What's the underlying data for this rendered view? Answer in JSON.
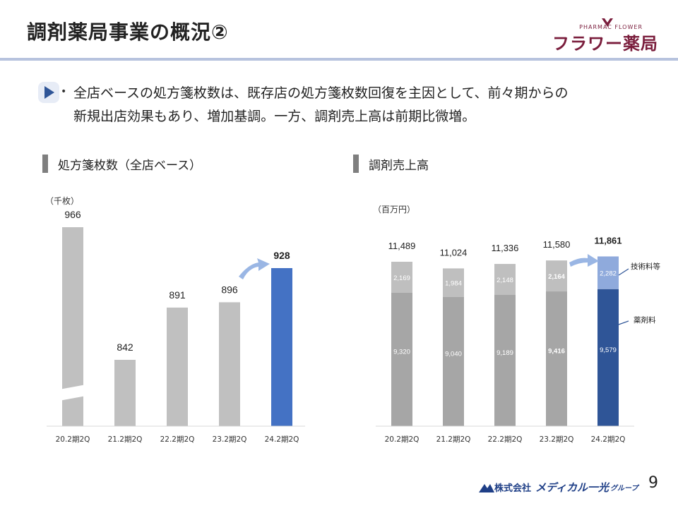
{
  "header": {
    "title": "調剤薬局事業の概況②"
  },
  "logo": {
    "top_text": "PHARMAC FLOWER",
    "main_text": "フラワー薬局"
  },
  "summary": {
    "line1": "全店ベースの処方箋枚数は、既存店の処方箋枚数回復を主因として、前々期からの",
    "line2": "新規出店効果もあり、増加基調。一方、調剤売上高は前期比微増。"
  },
  "sections": {
    "left_title": "処方箋枚数（全店ベース）",
    "right_title": "調剤売上高"
  },
  "units": {
    "left": "（千枚）",
    "right": "（百万円）"
  },
  "colors": {
    "gray_bar": "#c0c0c0",
    "highlight": "#4472c4",
    "stack_top": "#bfbfbf",
    "stack_bottom": "#a6a6a6",
    "top_highlight": "#8faadc",
    "bottom_highlight": "#2f5597",
    "arrow": "#9ab6e4"
  },
  "chart_data": [
    {
      "type": "bar",
      "title": "処方箋枚数（全店ベース）",
      "ylabel": "（千枚）",
      "categories": [
        "20.2期2Q",
        "21.2期2Q",
        "22.2期2Q",
        "23.2期2Q",
        "24.2期2Q"
      ],
      "values": [
        966,
        842,
        891,
        896,
        928
      ],
      "value_labels": [
        "966",
        "842",
        "891",
        "896",
        "928"
      ],
      "highlight_index": 4,
      "axis_break_index": 0,
      "ylim": [
        800,
        940
      ]
    },
    {
      "type": "bar",
      "stacked": true,
      "title": "調剤売上高",
      "ylabel": "（百万円）",
      "categories": [
        "20.2期2Q",
        "21.2期2Q",
        "22.2期2Q",
        "23.2期2Q",
        "24.2期2Q"
      ],
      "series": [
        {
          "name": "薬剤料",
          "values": [
            9320,
            9040,
            9189,
            9416,
            9579
          ],
          "labels": [
            "9,320",
            "9,040",
            "9,189",
            "9,416",
            "9,579"
          ]
        },
        {
          "name": "技術料等",
          "values": [
            2169,
            1984,
            2148,
            2164,
            2282
          ],
          "labels": [
            "2,169",
            "1,984",
            "2,148",
            "2,164",
            "2,282"
          ]
        }
      ],
      "totals": [
        "11,489",
        "11,024",
        "11,336",
        "11,580",
        "11,861"
      ],
      "total_values": [
        11489,
        11024,
        11336,
        11580,
        11861
      ],
      "highlight_index": 4,
      "bold_index": 3,
      "ylim": [
        0,
        12000
      ]
    }
  ],
  "footer": {
    "page_number": "9",
    "company_prefix": "株式会社",
    "company_name": "メディカル一光",
    "company_suffix": "グループ"
  }
}
